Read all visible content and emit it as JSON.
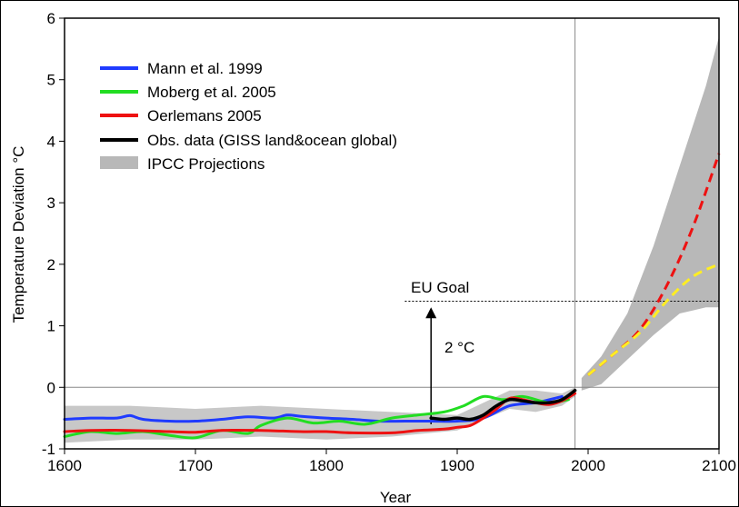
{
  "chart_data": {
    "type": "line",
    "xlabel": "Year",
    "ylabel": "Temperature Deviation °C",
    "xlim": [
      1600,
      2100
    ],
    "ylim": [
      -1,
      6
    ],
    "xticks": [
      1600,
      1700,
      1800,
      1900,
      2000,
      2100
    ],
    "yticks": [
      -1,
      0,
      1,
      2,
      3,
      4,
      5,
      6
    ],
    "grid": false,
    "legend_position": "top-left",
    "reference_lines": {
      "y_zero": 0,
      "x_vertical": 1990
    },
    "series": [
      {
        "name": "Mann et al. 1999",
        "color": "#1f3bff",
        "x": [
          1600,
          1620,
          1640,
          1650,
          1660,
          1680,
          1700,
          1720,
          1740,
          1760,
          1770,
          1780,
          1800,
          1820,
          1840,
          1860,
          1880,
          1900,
          1920,
          1940,
          1960,
          1980
        ],
        "y": [
          -0.52,
          -0.5,
          -0.5,
          -0.46,
          -0.52,
          -0.55,
          -0.55,
          -0.52,
          -0.48,
          -0.5,
          -0.45,
          -0.47,
          -0.5,
          -0.52,
          -0.55,
          -0.55,
          -0.55,
          -0.55,
          -0.5,
          -0.3,
          -0.25,
          -0.15
        ]
      },
      {
        "name": "Moberg et al. 2005",
        "color": "#22dd22",
        "x": [
          1600,
          1620,
          1640,
          1660,
          1680,
          1700,
          1720,
          1740,
          1750,
          1770,
          1790,
          1810,
          1830,
          1850,
          1870,
          1890,
          1905,
          1920,
          1935,
          1950,
          1970,
          1985
        ],
        "y": [
          -0.8,
          -0.72,
          -0.75,
          -0.72,
          -0.78,
          -0.82,
          -0.7,
          -0.75,
          -0.62,
          -0.5,
          -0.58,
          -0.55,
          -0.6,
          -0.5,
          -0.45,
          -0.4,
          -0.3,
          -0.15,
          -0.2,
          -0.15,
          -0.25,
          -0.2
        ]
      },
      {
        "name": "Oerlemans 2005",
        "color": "#ee1111",
        "x": [
          1600,
          1620,
          1650,
          1680,
          1700,
          1720,
          1750,
          1780,
          1800,
          1820,
          1850,
          1870,
          1890,
          1900,
          1910,
          1920,
          1930,
          1940,
          1950,
          1960,
          1970,
          1980,
          1990
        ],
        "y": [
          -0.72,
          -0.7,
          -0.7,
          -0.72,
          -0.73,
          -0.7,
          -0.7,
          -0.72,
          -0.72,
          -0.74,
          -0.74,
          -0.7,
          -0.68,
          -0.65,
          -0.62,
          -0.5,
          -0.35,
          -0.18,
          -0.2,
          -0.25,
          -0.28,
          -0.22,
          -0.1
        ]
      },
      {
        "name": "Obs. data (GISS land&ocean global)",
        "color": "#000000",
        "x": [
          1880,
          1890,
          1900,
          1910,
          1920,
          1930,
          1940,
          1950,
          1960,
          1970,
          1980,
          1990
        ],
        "y": [
          -0.5,
          -0.52,
          -0.5,
          -0.52,
          -0.45,
          -0.3,
          -0.2,
          -0.22,
          -0.25,
          -0.25,
          -0.2,
          -0.05
        ]
      }
    ],
    "projections": [
      {
        "color": "#ee1111",
        "style": "dashed",
        "x": [
          2000,
          2020,
          2040,
          2060,
          2080,
          2100
        ],
        "y": [
          0.2,
          0.55,
          0.95,
          1.65,
          2.6,
          3.8
        ]
      },
      {
        "color": "#ffee22",
        "style": "dashed",
        "x": [
          2000,
          2020,
          2040,
          2060,
          2080,
          2100
        ],
        "y": [
          0.2,
          0.55,
          0.9,
          1.4,
          1.8,
          2.0
        ]
      }
    ],
    "ipcc_band": {
      "name": "IPCC Projections",
      "color": "#b8b8b8",
      "x": [
        1995,
        2010,
        2030,
        2050,
        2070,
        2090,
        2100
      ],
      "upper": [
        0.15,
        0.5,
        1.2,
        2.3,
        3.6,
        4.9,
        5.7
      ],
      "lower": [
        -0.05,
        0.05,
        0.45,
        0.85,
        1.2,
        1.3,
        1.3
      ]
    },
    "uncertainty_band": {
      "color": "#c8c8c8",
      "x": [
        1600,
        1650,
        1700,
        1750,
        1800,
        1850,
        1900,
        1940,
        1960,
        1980,
        1990
      ],
      "upper": [
        -0.3,
        -0.3,
        -0.35,
        -0.3,
        -0.35,
        -0.4,
        -0.45,
        -0.05,
        -0.05,
        -0.1,
        0.0
      ],
      "lower": [
        -0.9,
        -0.85,
        -0.85,
        -0.8,
        -0.85,
        -0.8,
        -0.7,
        -0.35,
        -0.4,
        -0.3,
        -0.15
      ]
    },
    "eu_goal": {
      "label": "EU Goal",
      "y": 1.4,
      "x_start": 1860,
      "x_end": 2100
    },
    "arrow": {
      "label": "2 °C",
      "x": 1880,
      "y_from": -0.6,
      "y_to": 1.3
    }
  }
}
